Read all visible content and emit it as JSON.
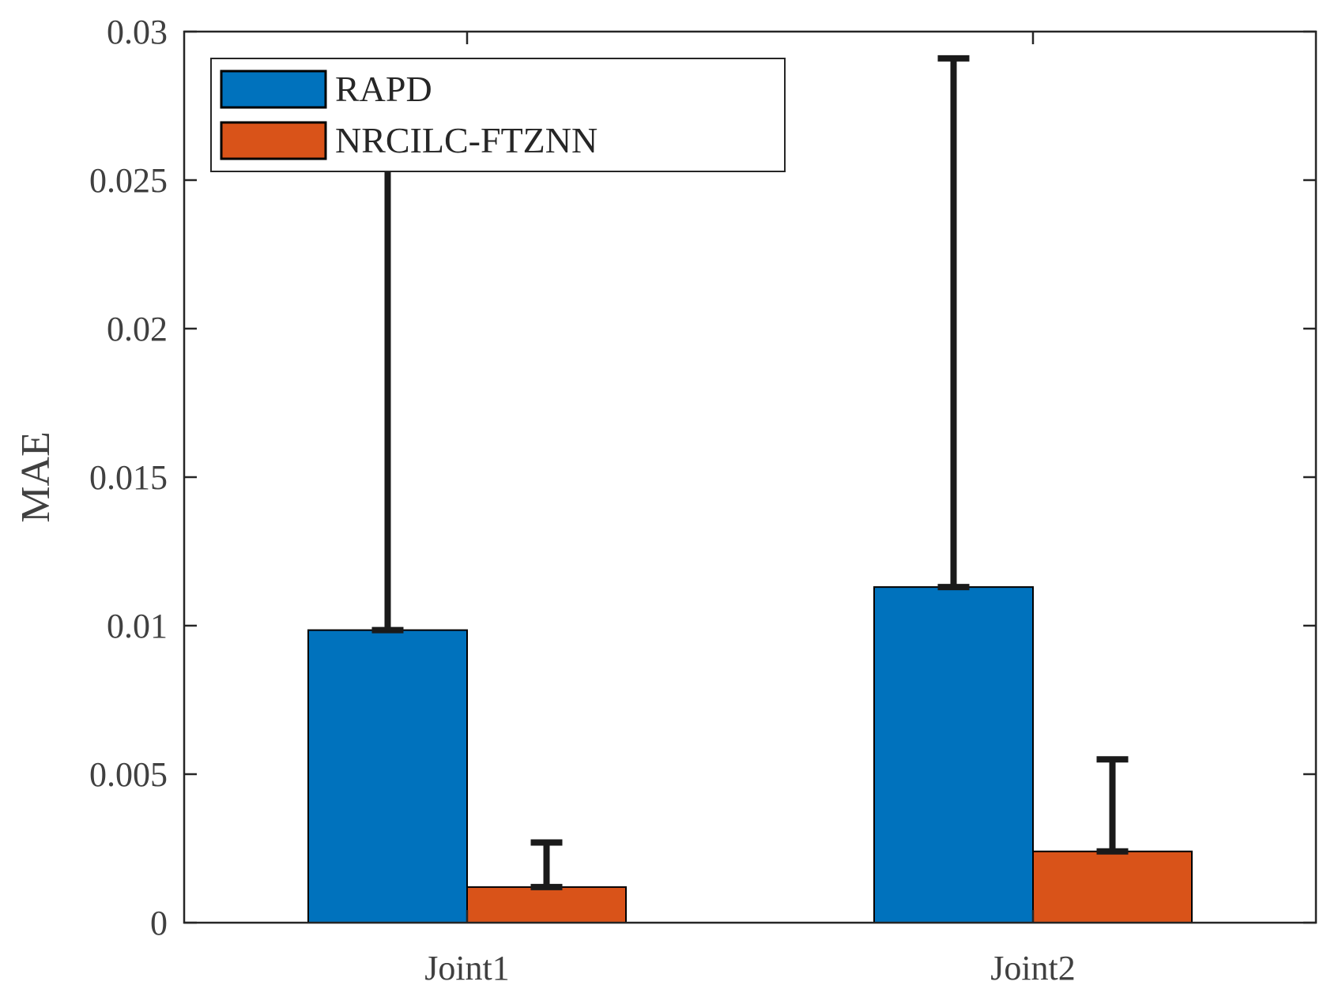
{
  "chart_data": {
    "type": "bar",
    "categories": [
      "Joint1",
      "Joint2"
    ],
    "series": [
      {
        "name": "RAPD",
        "color": "#0072BD",
        "values": [
          0.00985,
          0.0113
        ],
        "error_upper": [
          0.0262,
          0.0291
        ]
      },
      {
        "name": "NRCILC-FTZNN",
        "color": "#D95319",
        "values": [
          0.0012,
          0.0024
        ],
        "error_upper": [
          0.0027,
          0.0055
        ]
      }
    ],
    "ylabel": "MAE",
    "xlabel": "",
    "ylim": [
      0,
      0.03
    ],
    "yticks": [
      0,
      0.005,
      0.01,
      0.015,
      0.02,
      0.025,
      0.03
    ],
    "ytick_labels": [
      "0",
      "0.005",
      "0.01",
      "0.015",
      "0.02",
      "0.025",
      "0.03"
    ],
    "grid": false,
    "legend": "top-left"
  }
}
